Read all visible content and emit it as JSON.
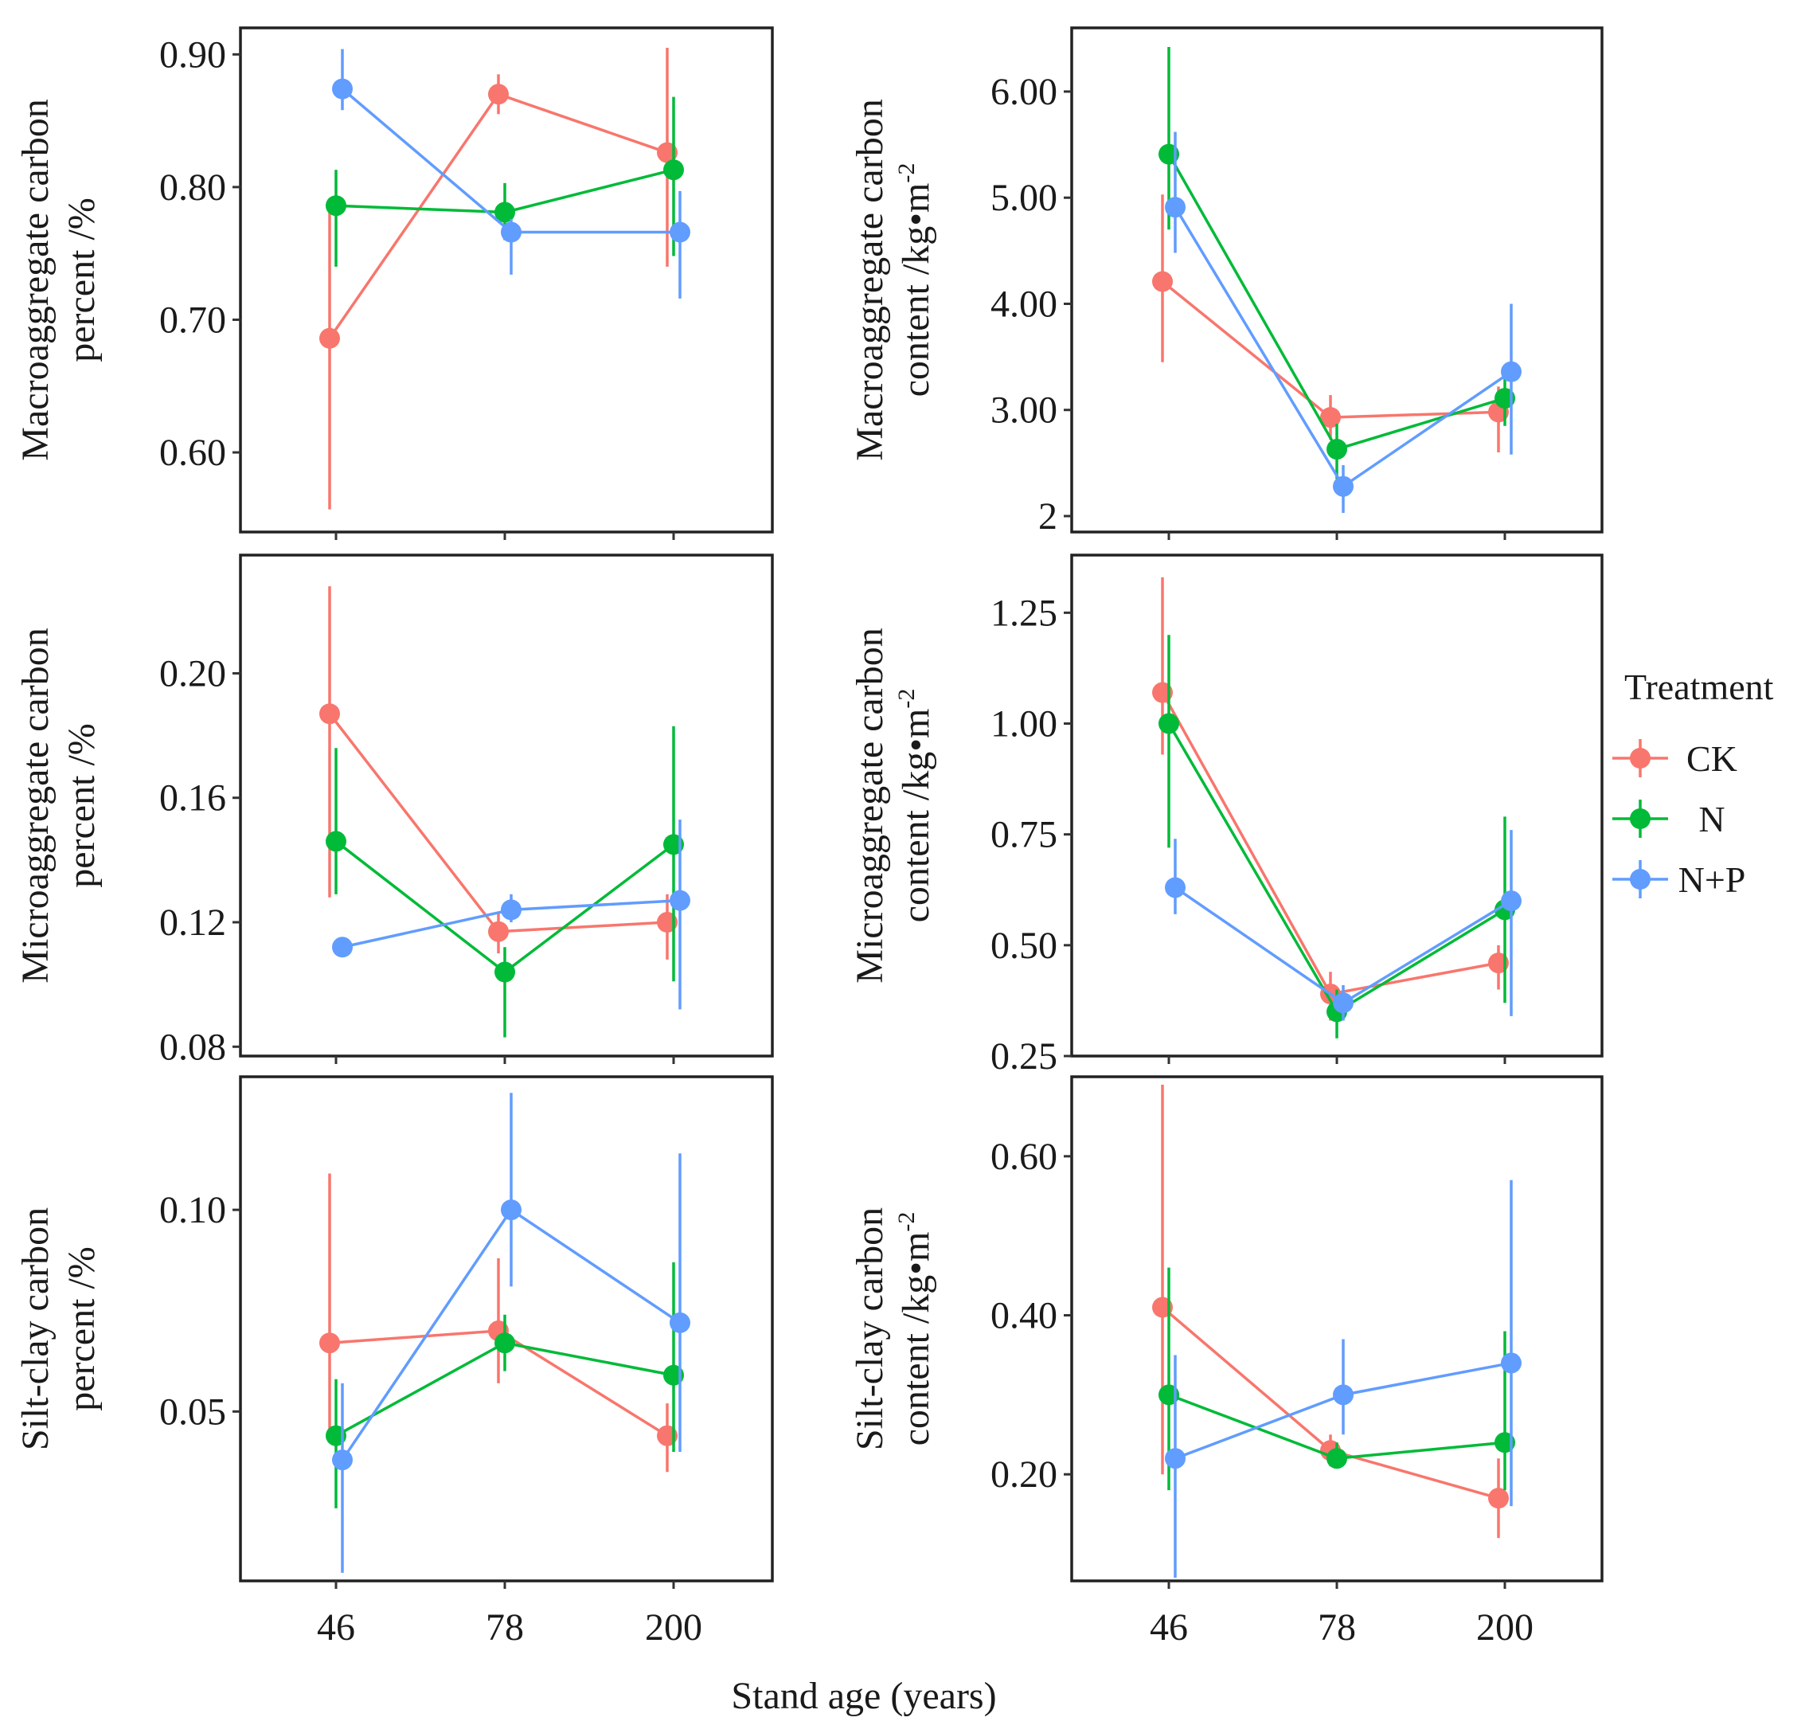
{
  "figure": {
    "x_axis_title": "Stand age (years)",
    "x_categories": [
      "46",
      "78",
      "200"
    ],
    "legend": {
      "title": "Treatment",
      "entries": [
        {
          "key": "CK",
          "label": "CK",
          "color": "#F8766D"
        },
        {
          "key": "N",
          "label": "N",
          "color": "#00BA38"
        },
        {
          "key": "NP",
          "label": "N+P",
          "color": "#619CFF"
        }
      ]
    }
  },
  "chart_data": [
    {
      "type": "line",
      "ylabel_lines": [
        "Macroaggregate carbon",
        "percent /%"
      ],
      "ylim": [
        0.54,
        0.92
      ],
      "yticks": [
        0.6,
        0.7,
        0.8,
        0.9
      ],
      "ytick_labels": [
        "0.60",
        "0.70",
        "0.80",
        "0.90"
      ],
      "categories": [
        "46",
        "78",
        "200"
      ],
      "series": [
        {
          "name": "CK",
          "values": [
            0.686,
            0.87,
            0.826
          ],
          "lower": [
            0.557,
            0.855,
            0.74
          ],
          "upper": [
            0.785,
            0.885,
            0.905
          ]
        },
        {
          "name": "N",
          "values": [
            0.786,
            0.781,
            0.813
          ],
          "lower": [
            0.74,
            0.76,
            0.748
          ],
          "upper": [
            0.813,
            0.803,
            0.868
          ]
        },
        {
          "name": "N+P",
          "values": [
            0.874,
            0.766,
            0.766
          ],
          "lower": [
            0.858,
            0.734,
            0.716
          ],
          "upper": [
            0.904,
            0.776,
            0.797
          ]
        }
      ]
    },
    {
      "type": "line",
      "ylabel_lines": [
        "Macroaggregate carbon",
        "content  /kg•m"
      ],
      "ylabel_sup": "-2",
      "ylim": [
        1.85,
        6.6
      ],
      "yticks": [
        2,
        3,
        4,
        5,
        6
      ],
      "ytick_labels": [
        "2",
        "3.00",
        "4.00",
        "5.00",
        "6.00"
      ],
      "categories": [
        "46",
        "78",
        "200"
      ],
      "series": [
        {
          "name": "CK",
          "values": [
            4.21,
            2.93,
            2.98
          ],
          "lower": [
            3.45,
            2.72,
            2.6
          ],
          "upper": [
            5.03,
            3.14,
            3.22
          ]
        },
        {
          "name": "N",
          "values": [
            5.41,
            2.63,
            3.11
          ],
          "lower": [
            4.7,
            2.35,
            2.85
          ],
          "upper": [
            6.42,
            2.87,
            3.35
          ]
        },
        {
          "name": "N+P",
          "values": [
            4.91,
            2.28,
            3.36
          ],
          "lower": [
            4.48,
            2.03,
            2.58
          ],
          "upper": [
            5.62,
            2.48,
            4.0
          ]
        }
      ]
    },
    {
      "type": "line",
      "ylabel_lines": [
        "Microaggregate carbon",
        "percent /%"
      ],
      "ylim": [
        0.077,
        0.238
      ],
      "yticks": [
        0.08,
        0.12,
        0.16,
        0.2
      ],
      "ytick_labels": [
        "0.08",
        "0.12",
        "0.16",
        "0.20"
      ],
      "categories": [
        "46",
        "78",
        "200"
      ],
      "series": [
        {
          "name": "CK",
          "values": [
            0.187,
            0.117,
            0.12
          ],
          "lower": [
            0.128,
            0.11,
            0.108
          ],
          "upper": [
            0.228,
            0.123,
            0.129
          ]
        },
        {
          "name": "N",
          "values": [
            0.146,
            0.104,
            0.145
          ],
          "lower": [
            0.129,
            0.083,
            0.101
          ],
          "upper": [
            0.176,
            0.112,
            0.183
          ]
        },
        {
          "name": "N+P",
          "values": [
            0.112,
            0.124,
            0.127
          ],
          "lower": [
            0.109,
            0.12,
            0.092
          ],
          "upper": [
            0.114,
            0.129,
            0.153
          ]
        }
      ]
    },
    {
      "type": "line",
      "ylabel_lines": [
        "Microaggregate carbon",
        "content  /kg•m"
      ],
      "ylabel_sup": "-2",
      "ylim": [
        0.25,
        1.38
      ],
      "yticks": [
        0.25,
        0.5,
        0.75,
        1.0,
        1.25
      ],
      "ytick_labels": [
        "0.25",
        "0.50",
        "0.75",
        "1.00",
        "1.25"
      ],
      "categories": [
        "46",
        "78",
        "200"
      ],
      "series": [
        {
          "name": "CK",
          "values": [
            1.07,
            0.39,
            0.46
          ],
          "lower": [
            0.93,
            0.33,
            0.4
          ],
          "upper": [
            1.33,
            0.44,
            0.5
          ]
        },
        {
          "name": "N",
          "values": [
            1.0,
            0.35,
            0.58
          ],
          "lower": [
            0.72,
            0.29,
            0.37
          ],
          "upper": [
            1.2,
            0.4,
            0.79
          ]
        },
        {
          "name": "N+P",
          "values": [
            0.63,
            0.37,
            0.6
          ],
          "lower": [
            0.57,
            0.33,
            0.34
          ],
          "upper": [
            0.74,
            0.41,
            0.76
          ]
        }
      ]
    },
    {
      "type": "line",
      "ylabel_lines": [
        "Silt-clay carbon",
        "percent /%"
      ],
      "ylim": [
        0.008,
        0.133
      ],
      "yticks": [
        0.05,
        0.1
      ],
      "ytick_labels": [
        "0.05",
        "0.10"
      ],
      "categories": [
        "46",
        "78",
        "200"
      ],
      "series": [
        {
          "name": "CK",
          "values": [
            0.067,
            0.07,
            0.044
          ],
          "lower": [
            0.045,
            0.057,
            0.035
          ],
          "upper": [
            0.109,
            0.088,
            0.052
          ]
        },
        {
          "name": "N",
          "values": [
            0.044,
            0.067,
            0.059
          ],
          "lower": [
            0.026,
            0.06,
            0.04
          ],
          "upper": [
            0.058,
            0.074,
            0.087
          ]
        },
        {
          "name": "N+P",
          "values": [
            0.038,
            0.1,
            0.072
          ],
          "lower": [
            0.01,
            0.081,
            0.04
          ],
          "upper": [
            0.057,
            0.129,
            0.114
          ]
        }
      ]
    },
    {
      "type": "line",
      "ylabel_lines": [
        "Silt-clay carbon",
        "content  /kg•m"
      ],
      "ylabel_sup": "-2",
      "ylim": [
        0.066,
        0.7
      ],
      "yticks": [
        0.2,
        0.4,
        0.6
      ],
      "ytick_labels": [
        "0.20",
        "0.40",
        "0.60"
      ],
      "categories": [
        "46",
        "78",
        "200"
      ],
      "series": [
        {
          "name": "CK",
          "values": [
            0.41,
            0.23,
            0.17
          ],
          "lower": [
            0.2,
            0.21,
            0.12
          ],
          "upper": [
            0.69,
            0.25,
            0.22
          ]
        },
        {
          "name": "N",
          "values": [
            0.3,
            0.22,
            0.24
          ],
          "lower": [
            0.18,
            0.21,
            0.18
          ],
          "upper": [
            0.46,
            0.24,
            0.38
          ]
        },
        {
          "name": "N+P",
          "values": [
            0.22,
            0.3,
            0.34
          ],
          "lower": [
            0.07,
            0.25,
            0.16
          ],
          "upper": [
            0.35,
            0.37,
            0.57
          ]
        }
      ]
    }
  ]
}
